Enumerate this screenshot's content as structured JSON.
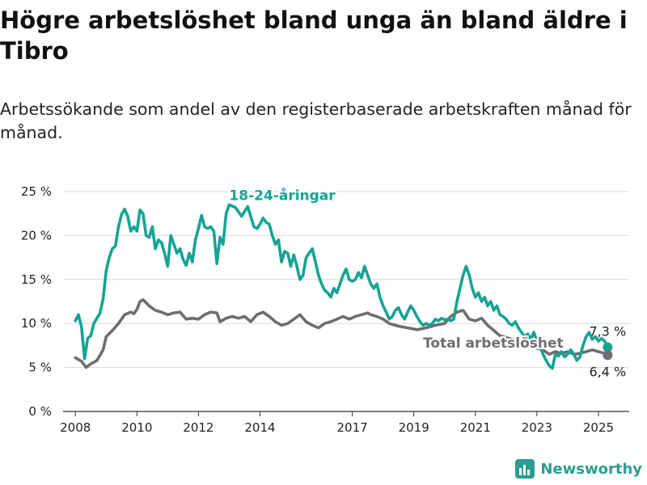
{
  "title": "Högre arbetslöshet bland unga än bland äldre i Tibro",
  "subtitle": "Arbetssökande som andel av den registerbaserade arbetskraften månad för månad.",
  "brand": "Newsworthy",
  "colors": {
    "youth": "#16a394",
    "total": "#6d6d72",
    "grid": "#d9d9d9",
    "axis": "#333333"
  },
  "chart_data": {
    "type": "line",
    "title": "Högre arbetslöshet bland unga än bland äldre i Tibro",
    "subtitle": "Arbetssökande som andel av den registerbaserade arbetskraften månad för månad.",
    "xlabel": "",
    "ylabel": "",
    "x_unit": "year",
    "xlim": [
      2007.6,
      2026.0
    ],
    "ylim": [
      0,
      25
    ],
    "x_ticks": [
      2008,
      2010,
      2012,
      2014,
      2017,
      2019,
      2021,
      2023,
      2025
    ],
    "x_tick_labels": [
      "2008",
      "2010",
      "2012",
      "2014",
      "2017",
      "2019",
      "2021",
      "2023",
      "2025"
    ],
    "y_ticks": [
      0,
      5,
      10,
      15,
      20,
      25
    ],
    "y_tick_labels": [
      "0 %",
      "5 %",
      "10 %",
      "15 %",
      "20 %",
      "25 %"
    ],
    "grid": "horizontal",
    "legend": "none (series labelled directly on the chart)",
    "series": [
      {
        "name": "18-24-åringar",
        "color": "#16a394",
        "end_label": "7,3 %",
        "points": [
          [
            2008.0,
            10.3
          ],
          [
            2008.1,
            11.0
          ],
          [
            2008.2,
            9.6
          ],
          [
            2008.3,
            6.0
          ],
          [
            2008.4,
            8.3
          ],
          [
            2008.5,
            8.6
          ],
          [
            2008.6,
            10.0
          ],
          [
            2008.8,
            11.2
          ],
          [
            2008.9,
            12.8
          ],
          [
            2009.0,
            16.0
          ],
          [
            2009.1,
            17.5
          ],
          [
            2009.2,
            18.5
          ],
          [
            2009.3,
            18.8
          ],
          [
            2009.4,
            21.0
          ],
          [
            2009.5,
            22.4
          ],
          [
            2009.6,
            23.0
          ],
          [
            2009.7,
            22.2
          ],
          [
            2009.8,
            20.5
          ],
          [
            2009.9,
            21.0
          ],
          [
            2010.0,
            20.5
          ],
          [
            2010.1,
            22.9
          ],
          [
            2010.2,
            22.5
          ],
          [
            2010.3,
            20.0
          ],
          [
            2010.4,
            19.8
          ],
          [
            2010.5,
            21.0
          ],
          [
            2010.6,
            18.5
          ],
          [
            2010.7,
            19.5
          ],
          [
            2010.8,
            19.2
          ],
          [
            2010.9,
            18.0
          ],
          [
            2011.0,
            16.5
          ],
          [
            2011.1,
            20.0
          ],
          [
            2011.2,
            19.0
          ],
          [
            2011.3,
            18.0
          ],
          [
            2011.4,
            18.5
          ],
          [
            2011.5,
            17.3
          ],
          [
            2011.6,
            16.6
          ],
          [
            2011.7,
            18.0
          ],
          [
            2011.8,
            17.0
          ],
          [
            2011.9,
            19.5
          ],
          [
            2012.0,
            20.8
          ],
          [
            2012.1,
            22.3
          ],
          [
            2012.2,
            21.0
          ],
          [
            2012.3,
            20.8
          ],
          [
            2012.4,
            21.0
          ],
          [
            2012.5,
            20.5
          ],
          [
            2012.6,
            16.8
          ],
          [
            2012.7,
            19.8
          ],
          [
            2012.8,
            19.0
          ],
          [
            2012.9,
            22.5
          ],
          [
            2013.0,
            23.5
          ],
          [
            2013.2,
            23.2
          ],
          [
            2013.4,
            22.2
          ],
          [
            2013.6,
            23.3
          ],
          [
            2013.8,
            21.0
          ],
          [
            2013.9,
            20.8
          ],
          [
            2014.0,
            21.3
          ],
          [
            2014.1,
            22.0
          ],
          [
            2014.2,
            21.5
          ],
          [
            2014.3,
            21.3
          ],
          [
            2014.4,
            20.0
          ],
          [
            2014.5,
            19.0
          ],
          [
            2014.6,
            19.5
          ],
          [
            2014.7,
            17.0
          ],
          [
            2014.8,
            18.2
          ],
          [
            2014.9,
            18.0
          ],
          [
            2015.0,
            16.5
          ],
          [
            2015.1,
            17.8
          ],
          [
            2015.2,
            16.5
          ],
          [
            2015.3,
            15.0
          ],
          [
            2015.4,
            15.5
          ],
          [
            2015.5,
            17.5
          ],
          [
            2015.6,
            18.0
          ],
          [
            2015.7,
            18.5
          ],
          [
            2015.8,
            17.0
          ],
          [
            2015.9,
            15.5
          ],
          [
            2016.0,
            14.5
          ],
          [
            2016.1,
            13.8
          ],
          [
            2016.2,
            13.5
          ],
          [
            2016.3,
            13.0
          ],
          [
            2016.4,
            14.0
          ],
          [
            2016.5,
            13.5
          ],
          [
            2016.6,
            14.5
          ],
          [
            2016.7,
            15.5
          ],
          [
            2016.8,
            16.2
          ],
          [
            2016.9,
            15.0
          ],
          [
            2017.0,
            14.8
          ],
          [
            2017.1,
            15.0
          ],
          [
            2017.2,
            15.8
          ],
          [
            2017.3,
            15.2
          ],
          [
            2017.4,
            16.5
          ],
          [
            2017.5,
            15.5
          ],
          [
            2017.6,
            14.5
          ],
          [
            2017.7,
            14.0
          ],
          [
            2017.8,
            14.5
          ],
          [
            2017.9,
            13.0
          ],
          [
            2018.0,
            12.0
          ],
          [
            2018.1,
            11.3
          ],
          [
            2018.2,
            10.5
          ],
          [
            2018.3,
            10.8
          ],
          [
            2018.4,
            11.5
          ],
          [
            2018.5,
            11.8
          ],
          [
            2018.6,
            11.0
          ],
          [
            2018.7,
            10.5
          ],
          [
            2018.8,
            11.3
          ],
          [
            2018.9,
            12.0
          ],
          [
            2019.0,
            11.5
          ],
          [
            2019.1,
            10.8
          ],
          [
            2019.2,
            10.2
          ],
          [
            2019.3,
            9.8
          ],
          [
            2019.4,
            10.0
          ],
          [
            2019.5,
            9.8
          ],
          [
            2019.6,
            10.0
          ],
          [
            2019.7,
            10.5
          ],
          [
            2019.8,
            10.3
          ],
          [
            2019.9,
            10.6
          ],
          [
            2020.0,
            10.4
          ],
          [
            2020.1,
            10.5
          ],
          [
            2020.2,
            10.3
          ],
          [
            2020.3,
            10.5
          ],
          [
            2020.4,
            12.5
          ],
          [
            2020.5,
            14.0
          ],
          [
            2020.6,
            15.5
          ],
          [
            2020.7,
            16.5
          ],
          [
            2020.8,
            15.5
          ],
          [
            2020.9,
            14.0
          ],
          [
            2021.0,
            13.0
          ],
          [
            2021.1,
            13.5
          ],
          [
            2021.2,
            12.5
          ],
          [
            2021.3,
            13.0
          ],
          [
            2021.4,
            12.0
          ],
          [
            2021.5,
            12.5
          ],
          [
            2021.6,
            11.5
          ],
          [
            2021.7,
            12.0
          ],
          [
            2021.8,
            11.0
          ],
          [
            2021.9,
            10.8
          ],
          [
            2022.0,
            10.5
          ],
          [
            2022.1,
            10.0
          ],
          [
            2022.2,
            9.8
          ],
          [
            2022.3,
            10.2
          ],
          [
            2022.4,
            9.5
          ],
          [
            2022.5,
            9.0
          ],
          [
            2022.6,
            8.5
          ],
          [
            2022.7,
            8.8
          ],
          [
            2022.8,
            8.2
          ],
          [
            2022.9,
            9.0
          ],
          [
            2023.0,
            8.0
          ],
          [
            2023.1,
            7.5
          ],
          [
            2023.2,
            6.5
          ],
          [
            2023.3,
            5.8
          ],
          [
            2023.4,
            5.2
          ],
          [
            2023.5,
            4.9
          ],
          [
            2023.6,
            6.5
          ],
          [
            2023.7,
            6.3
          ],
          [
            2023.8,
            6.8
          ],
          [
            2023.9,
            6.2
          ],
          [
            2024.0,
            6.5
          ],
          [
            2024.1,
            7.0
          ],
          [
            2024.2,
            6.5
          ],
          [
            2024.3,
            5.8
          ],
          [
            2024.4,
            6.2
          ],
          [
            2024.5,
            7.5
          ],
          [
            2024.6,
            8.5
          ],
          [
            2024.7,
            9.0
          ],
          [
            2024.8,
            8.2
          ],
          [
            2024.9,
            8.5
          ],
          [
            2025.0,
            8.0
          ],
          [
            2025.1,
            8.3
          ],
          [
            2025.2,
            8.0
          ],
          [
            2025.3,
            7.3
          ]
        ]
      },
      {
        "name": "Total arbetslöshet",
        "color": "#6d6d72",
        "end_label": "6,4 %",
        "points": [
          [
            2008.0,
            6.1
          ],
          [
            2008.2,
            5.7
          ],
          [
            2008.35,
            5.0
          ],
          [
            2008.5,
            5.4
          ],
          [
            2008.7,
            5.8
          ],
          [
            2008.8,
            6.4
          ],
          [
            2008.9,
            7.0
          ],
          [
            2009.0,
            8.5
          ],
          [
            2009.2,
            9.2
          ],
          [
            2009.4,
            10.0
          ],
          [
            2009.6,
            11.0
          ],
          [
            2009.8,
            11.3
          ],
          [
            2009.9,
            11.1
          ],
          [
            2010.0,
            11.6
          ],
          [
            2010.1,
            12.5
          ],
          [
            2010.2,
            12.7
          ],
          [
            2010.4,
            12.0
          ],
          [
            2010.6,
            11.5
          ],
          [
            2010.8,
            11.3
          ],
          [
            2011.0,
            11.0
          ],
          [
            2011.2,
            11.2
          ],
          [
            2011.4,
            11.3
          ],
          [
            2011.6,
            10.5
          ],
          [
            2011.8,
            10.6
          ],
          [
            2012.0,
            10.5
          ],
          [
            2012.2,
            11.0
          ],
          [
            2012.4,
            11.3
          ],
          [
            2012.6,
            11.2
          ],
          [
            2012.7,
            10.2
          ],
          [
            2012.9,
            10.6
          ],
          [
            2013.1,
            10.8
          ],
          [
            2013.3,
            10.6
          ],
          [
            2013.5,
            10.8
          ],
          [
            2013.7,
            10.2
          ],
          [
            2013.9,
            11.0
          ],
          [
            2014.1,
            11.3
          ],
          [
            2014.3,
            10.8
          ],
          [
            2014.5,
            10.2
          ],
          [
            2014.7,
            9.8
          ],
          [
            2014.9,
            10.0
          ],
          [
            2015.1,
            10.5
          ],
          [
            2015.3,
            11.0
          ],
          [
            2015.5,
            10.2
          ],
          [
            2015.7,
            9.8
          ],
          [
            2015.9,
            9.5
          ],
          [
            2016.1,
            10.0
          ],
          [
            2016.3,
            10.2
          ],
          [
            2016.5,
            10.5
          ],
          [
            2016.7,
            10.8
          ],
          [
            2016.9,
            10.5
          ],
          [
            2017.1,
            10.8
          ],
          [
            2017.3,
            11.0
          ],
          [
            2017.5,
            11.2
          ],
          [
            2017.6,
            11.0
          ],
          [
            2017.8,
            10.8
          ],
          [
            2018.0,
            10.5
          ],
          [
            2018.2,
            10.0
          ],
          [
            2018.5,
            9.7
          ],
          [
            2018.8,
            9.5
          ],
          [
            2019.1,
            9.3
          ],
          [
            2019.4,
            9.5
          ],
          [
            2019.7,
            9.8
          ],
          [
            2020.0,
            10.0
          ],
          [
            2020.2,
            10.8
          ],
          [
            2020.4,
            11.3
          ],
          [
            2020.6,
            11.5
          ],
          [
            2020.8,
            10.5
          ],
          [
            2021.0,
            10.3
          ],
          [
            2021.2,
            10.6
          ],
          [
            2021.4,
            9.8
          ],
          [
            2021.6,
            9.2
          ],
          [
            2021.8,
            8.6
          ],
          [
            2022.0,
            8.4
          ],
          [
            2022.2,
            8.2
          ],
          [
            2022.4,
            8.0
          ],
          [
            2022.6,
            7.8
          ],
          [
            2022.8,
            7.5
          ],
          [
            2023.0,
            7.2
          ],
          [
            2023.2,
            7.0
          ],
          [
            2023.4,
            6.5
          ],
          [
            2023.6,
            6.8
          ],
          [
            2023.8,
            6.6
          ],
          [
            2024.0,
            6.8
          ],
          [
            2024.2,
            6.5
          ],
          [
            2024.4,
            6.6
          ],
          [
            2024.6,
            6.8
          ],
          [
            2024.8,
            7.0
          ],
          [
            2025.0,
            6.8
          ],
          [
            2025.2,
            6.6
          ],
          [
            2025.3,
            6.4
          ]
        ]
      }
    ],
    "annotations": [
      {
        "text": "18-24-åringar",
        "series": "18-24-åringar",
        "anchor_x": 2013.0,
        "anchor_y": 23.3
      },
      {
        "text": "Total arbetslöshet",
        "series": "Total arbetslöshet",
        "anchor_x": 2019.3,
        "anchor_y": 9.3
      }
    ]
  }
}
